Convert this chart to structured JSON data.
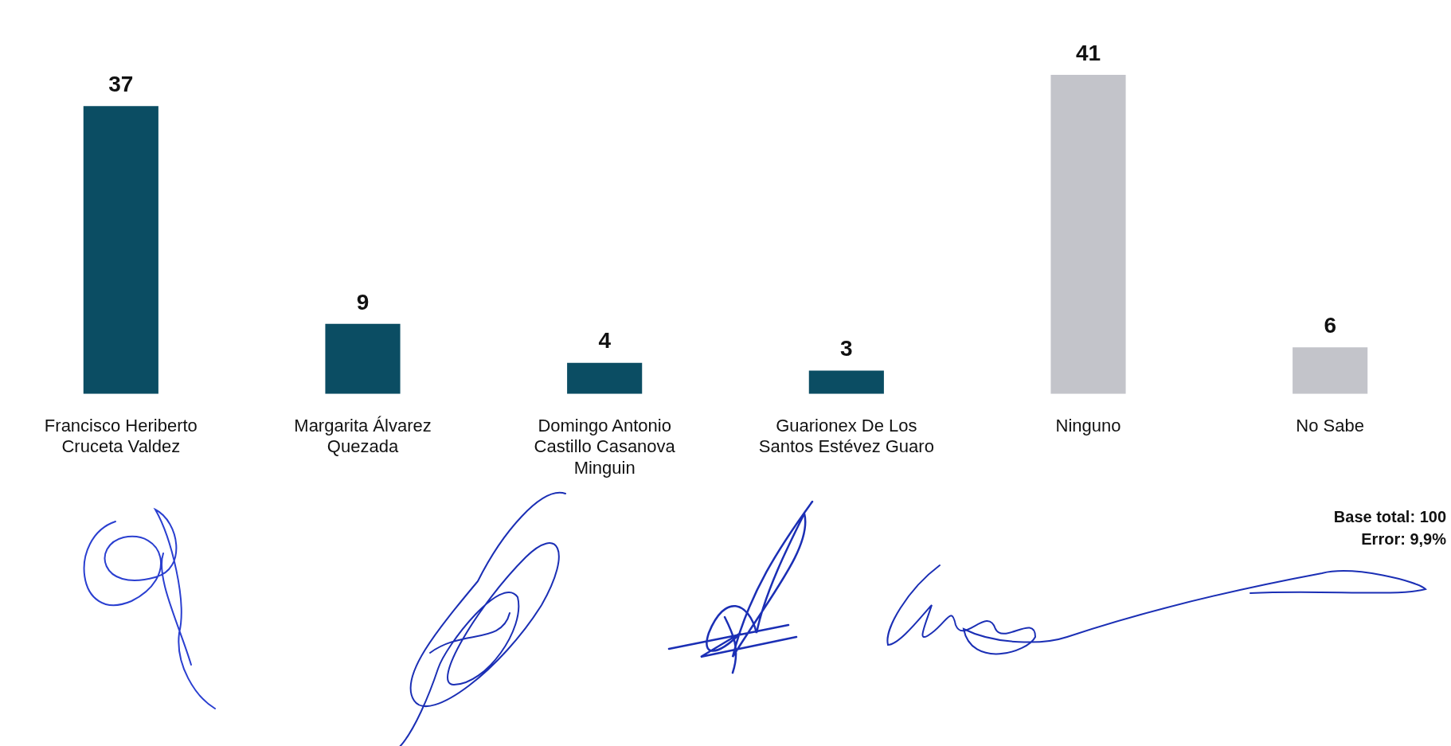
{
  "chart_data": {
    "type": "bar",
    "categories": [
      "Francisco Heriberto Cruceta Valdez",
      "Margarita Álvarez Quezada",
      "Domingo Antonio Castillo Casanova Minguin",
      "Guarionex De Los Santos Estévez Guaro",
      "Ninguno",
      "No Sabe"
    ],
    "values": [
      37,
      9,
      4,
      3,
      41,
      6
    ],
    "colors": [
      "#0b4d63",
      "#0b4d63",
      "#0b4d63",
      "#0b4d63",
      "#c3c4ca",
      "#c3c4ca"
    ],
    "data_labels": true,
    "grid": false,
    "legend": false,
    "annotations": [
      "Base total: 100",
      "Error: 9,9%"
    ]
  }
}
